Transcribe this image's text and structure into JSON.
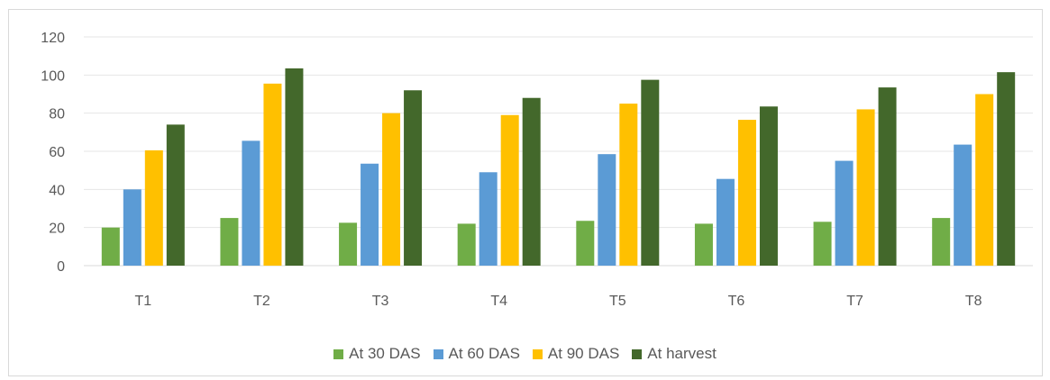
{
  "chart_data": {
    "type": "bar",
    "categories": [
      "T1",
      "T2",
      "T3",
      "T4",
      "T5",
      "T6",
      "T7",
      "T8"
    ],
    "series": [
      {
        "name": "At 30 DAS",
        "color": "#70ad47",
        "values": [
          20,
          25,
          22.5,
          22,
          23.5,
          22,
          23,
          25
        ]
      },
      {
        "name": "At 60 DAS",
        "color": "#5b9bd5",
        "values": [
          40,
          65.5,
          53.5,
          49,
          58.5,
          45.5,
          55,
          63.5
        ]
      },
      {
        "name": "At 90 DAS",
        "color": "#ffc000",
        "values": [
          60.5,
          95.5,
          80,
          79,
          85,
          76.5,
          82,
          90
        ]
      },
      {
        "name": "At harvest",
        "color": "#43682b",
        "values": [
          74,
          103.5,
          92,
          88,
          97.5,
          83.5,
          93.5,
          101.5
        ]
      }
    ],
    "ylim": [
      0,
      120
    ],
    "yticks": [
      0,
      20,
      40,
      60,
      80,
      100,
      120
    ],
    "grid": true,
    "legend_position": "bottom"
  }
}
